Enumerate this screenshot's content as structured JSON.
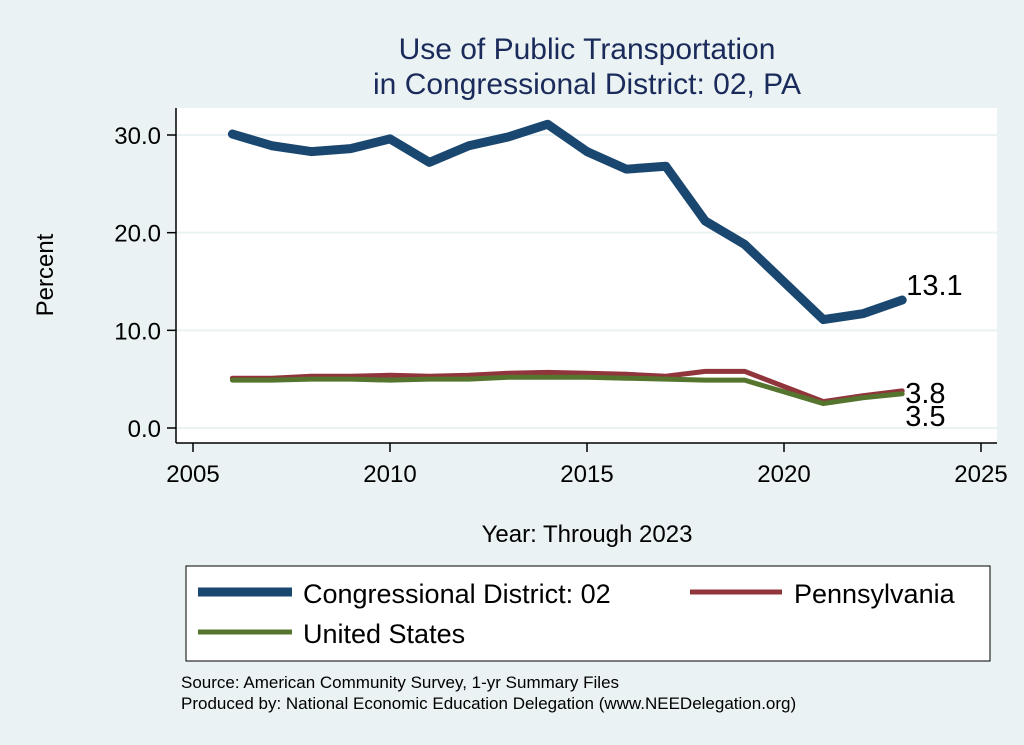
{
  "chart_data": {
    "type": "line",
    "title": [
      "Use of Public Transportation",
      "in Congressional District: 02, PA"
    ],
    "xlabel": "Year: Through 2023",
    "ylabel": "Percent",
    "xlim": [
      2005,
      2025
    ],
    "ylim": [
      0,
      30
    ],
    "x_ticks": [
      2005,
      2010,
      2015,
      2020,
      2025
    ],
    "x_tick_labels": [
      "2005",
      "2010",
      "2015",
      "2020",
      "2025"
    ],
    "y_ticks": [
      0,
      10,
      20,
      30
    ],
    "y_tick_labels": [
      "0.0",
      "10.0",
      "20.0",
      "30.0"
    ],
    "grid": true,
    "x": [
      2006,
      2007,
      2008,
      2009,
      2010,
      2011,
      2012,
      2013,
      2014,
      2015,
      2016,
      2017,
      2018,
      2019,
      2021,
      2022,
      2023
    ],
    "series": [
      {
        "name": "Congressional District: 02",
        "color": "#1a476f",
        "values": [
          30.1,
          28.9,
          28.3,
          28.6,
          29.6,
          27.2,
          28.9,
          29.8,
          31.1,
          28.3,
          26.5,
          26.8,
          21.2,
          18.8,
          11.1,
          11.7,
          13.1
        ],
        "end_label": "13.1"
      },
      {
        "name": "Pennsylvania",
        "color": "#90353b",
        "values": [
          5.1,
          5.1,
          5.3,
          5.3,
          5.4,
          5.3,
          5.4,
          5.6,
          5.7,
          5.6,
          5.5,
          5.3,
          5.8,
          5.8,
          2.7,
          3.3,
          3.8
        ],
        "end_label": "3.8"
      },
      {
        "name": "United States",
        "color": "#55752f",
        "values": [
          4.9,
          4.9,
          5.0,
          5.0,
          4.9,
          5.0,
          5.0,
          5.2,
          5.2,
          5.2,
          5.1,
          5.0,
          4.9,
          4.9,
          2.5,
          3.1,
          3.5
        ],
        "end_label": "3.5"
      }
    ],
    "legend": {
      "placement": "bottom",
      "entries": [
        "Congressional District: 02",
        "Pennsylvania",
        "United States"
      ]
    },
    "notes": [
      "Source: American Community Survey, 1-yr Summary Files",
      "Produced by: National Economic Education Delegation (www.NEEDelegation.org)"
    ]
  }
}
